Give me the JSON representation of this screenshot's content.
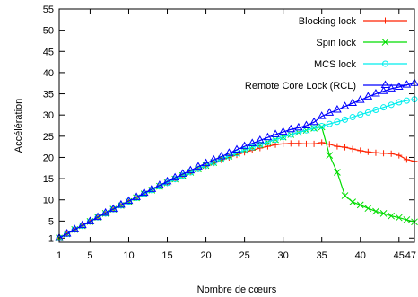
{
  "chart_data": {
    "type": "line",
    "title": "",
    "xlabel": "Nombre de cœurs",
    "ylabel": "Accélération",
    "xlim": [
      1,
      47
    ],
    "ylim": [
      0,
      55
    ],
    "x_ticks": [
      1,
      5,
      10,
      15,
      20,
      25,
      30,
      35,
      40,
      45,
      47
    ],
    "y_ticks": [
      1,
      5,
      10,
      15,
      20,
      25,
      30,
      35,
      40,
      45,
      50,
      55
    ],
    "grid": false,
    "legend_position": "top-right",
    "series": [
      {
        "name": "Blocking lock",
        "color": "#ff2200",
        "marker": "plus",
        "x": [
          1,
          2,
          3,
          4,
          5,
          6,
          7,
          8,
          9,
          10,
          11,
          12,
          13,
          14,
          15,
          16,
          17,
          18,
          19,
          20,
          21,
          22,
          23,
          24,
          25,
          26,
          27,
          28,
          29,
          30,
          31,
          32,
          33,
          34,
          35,
          36,
          37,
          38,
          39,
          40,
          41,
          42,
          43,
          44,
          45,
          46,
          47
        ],
        "y": [
          1,
          2,
          3,
          3.9,
          4.9,
          5.9,
          6.8,
          7.8,
          8.7,
          9.6,
          10.5,
          11.4,
          12.3,
          13.2,
          14,
          14.9,
          15.7,
          16.5,
          17.3,
          18,
          18.7,
          19.4,
          20,
          20.6,
          21.2,
          21.7,
          22.2,
          22.6,
          23,
          23.2,
          23.3,
          23.3,
          23.2,
          23.2,
          23.5,
          23.1,
          22.6,
          22.4,
          22,
          21.6,
          21.3,
          21.1,
          21,
          20.9,
          20.5,
          19.5,
          19.1
        ]
      },
      {
        "name": "Spin lock",
        "color": "#00dd00",
        "marker": "cross",
        "x": [
          1,
          2,
          3,
          4,
          5,
          6,
          7,
          8,
          9,
          10,
          11,
          12,
          13,
          14,
          15,
          16,
          17,
          18,
          19,
          20,
          21,
          22,
          23,
          24,
          25,
          26,
          27,
          28,
          29,
          30,
          31,
          32,
          33,
          34,
          35,
          36,
          37,
          38,
          39,
          40,
          41,
          42,
          43,
          44,
          45,
          46,
          47
        ],
        "y": [
          1,
          2,
          3,
          3.9,
          4.9,
          5.9,
          6.8,
          7.8,
          8.7,
          9.6,
          10.5,
          11.4,
          12.3,
          13.2,
          14,
          14.9,
          15.7,
          16.5,
          17.3,
          18.1,
          18.8,
          19.6,
          20.3,
          21,
          21.7,
          22.4,
          23,
          23.6,
          24.2,
          24.8,
          25.4,
          25.9,
          26.4,
          26.9,
          27.2,
          20.5,
          16.5,
          11,
          9.5,
          8.8,
          8,
          7.3,
          6.8,
          6.2,
          5.8,
          5.3,
          4.8
        ]
      },
      {
        "name": "MCS lock",
        "color": "#00eeee",
        "marker": "circle",
        "x": [
          1,
          2,
          3,
          4,
          5,
          6,
          7,
          8,
          9,
          10,
          11,
          12,
          13,
          14,
          15,
          16,
          17,
          18,
          19,
          20,
          21,
          22,
          23,
          24,
          25,
          26,
          27,
          28,
          29,
          30,
          31,
          32,
          33,
          34,
          35,
          36,
          37,
          38,
          39,
          40,
          41,
          42,
          43,
          44,
          45,
          46,
          47
        ],
        "y": [
          1,
          2,
          3,
          3.9,
          4.9,
          5.9,
          6.8,
          7.8,
          8.7,
          9.6,
          10.5,
          11.4,
          12.3,
          13.2,
          14,
          14.9,
          15.7,
          16.5,
          17.3,
          18.1,
          18.8,
          19.6,
          20.3,
          21,
          21.7,
          22.4,
          23,
          23.6,
          24.2,
          24.8,
          25.4,
          25.9,
          26.4,
          26.9,
          27.4,
          27.9,
          28.4,
          28.9,
          29.5,
          30.1,
          30.6,
          31.2,
          31.8,
          32.4,
          33,
          33.4,
          33.7
        ]
      },
      {
        "name": "Remote Core Lock (RCL)",
        "color": "#0000ff",
        "marker": "triangle",
        "x": [
          1,
          2,
          3,
          4,
          5,
          6,
          7,
          8,
          9,
          10,
          11,
          12,
          13,
          14,
          15,
          16,
          17,
          18,
          19,
          20,
          21,
          22,
          23,
          24,
          25,
          26,
          27,
          28,
          29,
          30,
          31,
          32,
          33,
          34,
          35,
          36,
          37,
          38,
          39,
          40,
          41,
          42,
          43,
          44,
          45,
          46,
          47
        ],
        "y": [
          1,
          2,
          3,
          4,
          4.9,
          5.9,
          6.9,
          7.8,
          8.8,
          9.7,
          10.6,
          11.6,
          12.5,
          13.4,
          14.3,
          15.2,
          16.1,
          16.9,
          17.8,
          18.6,
          19.4,
          20.2,
          21,
          21.8,
          22.6,
          23.3,
          24,
          24.7,
          25.4,
          26,
          26.6,
          27,
          27.5,
          28.3,
          29.7,
          30.5,
          31.2,
          32,
          32.8,
          33.5,
          34.3,
          35,
          35.6,
          36.2,
          36.6,
          37.1,
          37.5
        ]
      }
    ]
  }
}
